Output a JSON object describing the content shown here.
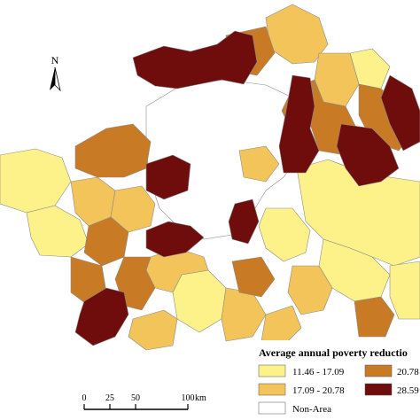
{
  "map": {
    "legend": {
      "title": "Average annual poverty reductio",
      "classes": [
        {
          "label": "11.46 - 17.09",
          "color": "#fdf18a"
        },
        {
          "label": "17.09 - 20.78",
          "color": "#f2c45a"
        },
        {
          "label": "20.78 - ",
          "color": "#c97a25"
        },
        {
          "label": "28.59 - ",
          "color": "#6f0d0d"
        },
        {
          "label": "Non-Area",
          "color": "#ffffff"
        }
      ]
    },
    "north_arrow": {
      "label": "N"
    },
    "scale_bar": {
      "ticks": [
        "0",
        "25",
        "50",
        "100"
      ],
      "unit": "km"
    }
  }
}
